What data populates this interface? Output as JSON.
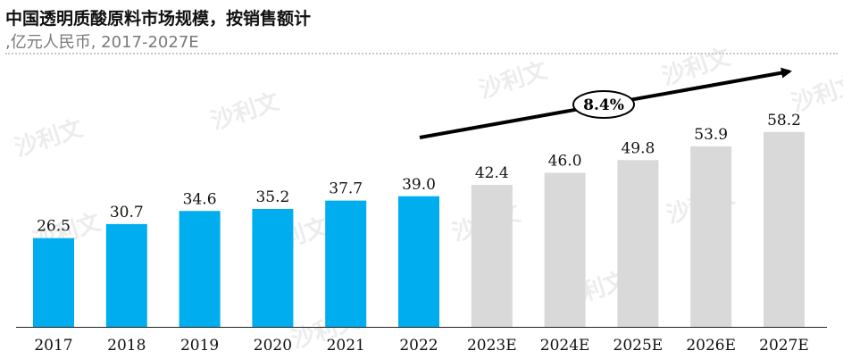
{
  "title": "中国透明质酸原料市场规模，按销售额计",
  "subtitle": ",亿元人民币, 2017-2027E",
  "colors": {
    "actual": "#00AEEF",
    "forecast": "#D9D9D9",
    "text": "#111111"
  },
  "cagr_label": "8.4%",
  "watermark_text": "沙利文",
  "chart_data": {
    "type": "bar",
    "categories": [
      "2017",
      "2018",
      "2019",
      "2020",
      "2021",
      "2022",
      "2023E",
      "2024E",
      "2025E",
      "2026E",
      "2027E"
    ],
    "values": [
      26.5,
      30.7,
      34.6,
      35.2,
      37.7,
      39.0,
      42.4,
      46.0,
      49.8,
      53.9,
      58.2
    ],
    "value_labels": [
      "26.5",
      "30.7",
      "34.6",
      "35.2",
      "37.7",
      "39.0",
      "42.4",
      "46.0",
      "49.8",
      "53.9",
      "58.2"
    ],
    "forecast_from_index": 6,
    "ylim": [
      0,
      65
    ],
    "grid": false,
    "legend": "none"
  }
}
